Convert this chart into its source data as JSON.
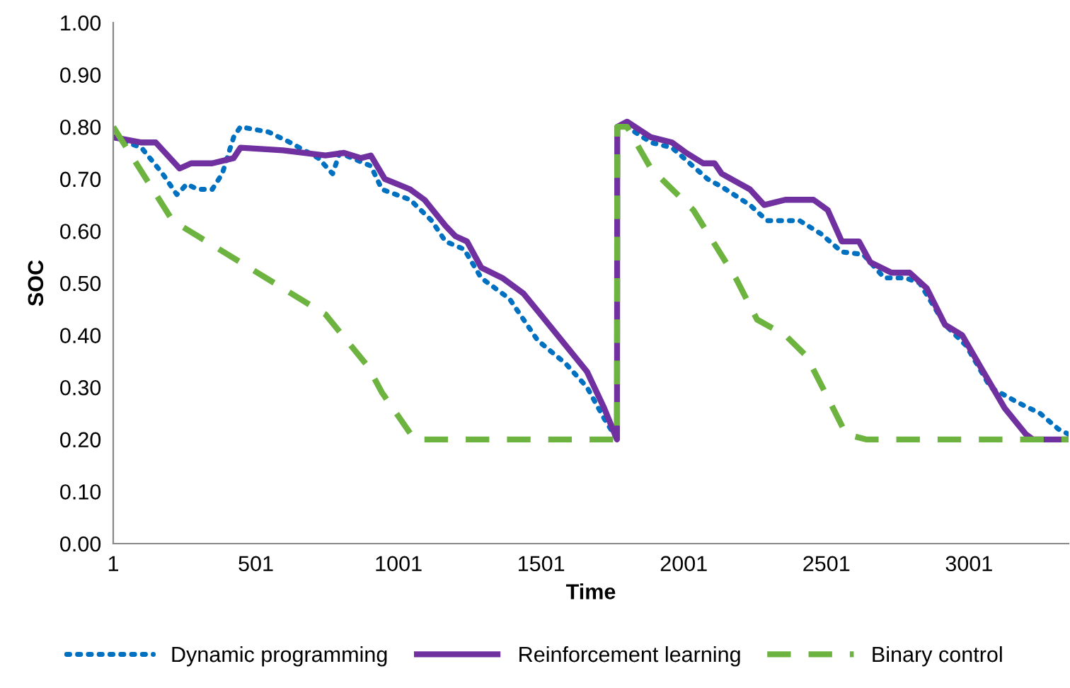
{
  "chart_data": {
    "type": "line",
    "xlabel": "Time",
    "ylabel": "SOC",
    "xlim": [
      1,
      3350
    ],
    "xticks": [
      1,
      501,
      1001,
      1501,
      2001,
      2501,
      3001
    ],
    "ylim": [
      0,
      1
    ],
    "yticks": [
      {
        "value": 0,
        "label": "0.00"
      },
      {
        "value": 0.1,
        "label": "0.10"
      },
      {
        "value": 0.2,
        "label": "0.20"
      },
      {
        "value": 0.3,
        "label": "0.30"
      },
      {
        "value": 0.4,
        "label": "0.40"
      },
      {
        "value": 0.5,
        "label": "0.50"
      },
      {
        "value": 0.6,
        "label": "0.60"
      },
      {
        "value": 0.7,
        "label": "0.70"
      },
      {
        "value": 0.8,
        "label": "0.80"
      },
      {
        "value": 0.9,
        "label": "0.90"
      },
      {
        "value": 1,
        "label": "1.00"
      }
    ],
    "grid": false,
    "legend": "bottom",
    "series": [
      {
        "name": "Dynamic programming",
        "color": "#0070c0",
        "line_style": "dotted",
        "x": [
          1,
          100,
          174,
          224,
          259,
          298,
          348,
          383,
          423,
          447,
          546,
          621,
          720,
          770,
          795,
          904,
          943,
          1042,
          1117,
          1166,
          1231,
          1291,
          1390,
          1489,
          1588,
          1662,
          1722,
          1767,
          1768,
          1802,
          1886,
          1960,
          2084,
          2134,
          2233,
          2293,
          2407,
          2481,
          2555,
          2630,
          2704,
          2778,
          2828,
          2917,
          2991,
          3076,
          3175,
          3250,
          3314,
          3350
        ],
        "values": [
          0.78,
          0.76,
          0.71,
          0.67,
          0.69,
          0.68,
          0.68,
          0.71,
          0.78,
          0.8,
          0.79,
          0.77,
          0.74,
          0.71,
          0.75,
          0.725,
          0.68,
          0.66,
          0.62,
          0.58,
          0.565,
          0.51,
          0.47,
          0.39,
          0.345,
          0.3,
          0.24,
          0.2,
          0.8,
          0.8,
          0.77,
          0.76,
          0.7,
          0.685,
          0.65,
          0.62,
          0.62,
          0.595,
          0.56,
          0.555,
          0.51,
          0.51,
          0.5,
          0.42,
          0.38,
          0.3,
          0.27,
          0.25,
          0.22,
          0.21
        ]
      },
      {
        "name": "Reinforcement learning",
        "color": "#7030a0",
        "line_style": "solid",
        "x": [
          1,
          100,
          150,
          234,
          274,
          348,
          423,
          447,
          596,
          745,
          810,
          869,
          904,
          953,
          1042,
          1092,
          1166,
          1201,
          1241,
          1291,
          1365,
          1439,
          1514,
          1588,
          1662,
          1722,
          1767,
          1768,
          1802,
          1886,
          1960,
          2010,
          2069,
          2109,
          2134,
          2233,
          2283,
          2357,
          2456,
          2506,
          2555,
          2615,
          2655,
          2729,
          2793,
          2853,
          2917,
          2977,
          3051,
          3126,
          3200,
          3225,
          3350
        ],
        "values": [
          0.78,
          0.77,
          0.77,
          0.72,
          0.73,
          0.73,
          0.74,
          0.76,
          0.755,
          0.745,
          0.75,
          0.74,
          0.745,
          0.7,
          0.68,
          0.66,
          0.61,
          0.59,
          0.58,
          0.53,
          0.51,
          0.48,
          0.43,
          0.38,
          0.33,
          0.26,
          0.2,
          0.8,
          0.81,
          0.78,
          0.77,
          0.75,
          0.73,
          0.73,
          0.71,
          0.68,
          0.65,
          0.66,
          0.66,
          0.64,
          0.58,
          0.58,
          0.54,
          0.52,
          0.52,
          0.49,
          0.42,
          0.4,
          0.33,
          0.26,
          0.21,
          0.2,
          0.2
        ]
      },
      {
        "name": "Binary control",
        "color": "#6db33f",
        "line_style": "dashed",
        "x": [
          1,
          209,
          447,
          745,
          894,
          943,
          1057,
          1767,
          1768,
          1802,
          1886,
          2035,
          2183,
          2258,
          2357,
          2431,
          2506,
          2570,
          2640,
          3350
        ],
        "values": [
          0.8,
          0.62,
          0.54,
          0.44,
          0.34,
          0.29,
          0.2,
          0.2,
          0.8,
          0.8,
          0.72,
          0.64,
          0.51,
          0.43,
          0.4,
          0.36,
          0.28,
          0.21,
          0.2,
          0.2
        ]
      }
    ]
  }
}
